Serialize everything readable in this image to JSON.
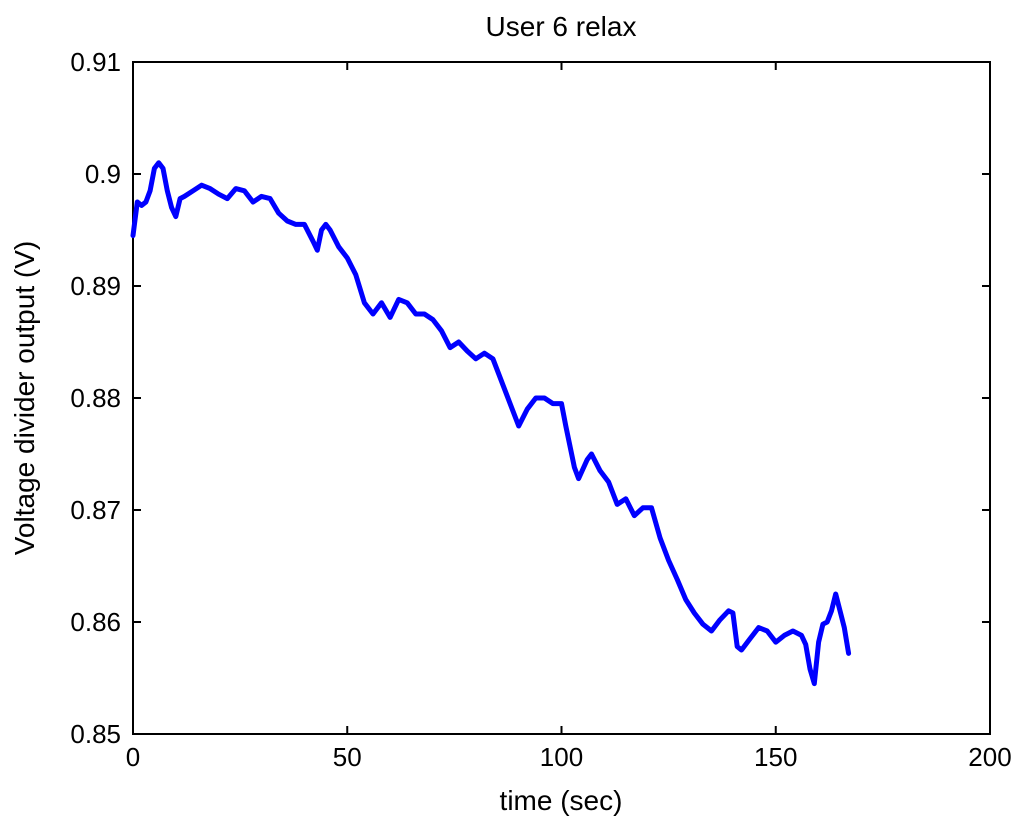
{
  "chart_data": {
    "type": "line",
    "title": "User 6 relax",
    "xlabel": "time (sec)",
    "ylabel": "Voltage divider output (V)",
    "xlim": [
      0,
      200
    ],
    "ylim": [
      0.85,
      0.91
    ],
    "xticks": [
      0,
      50,
      100,
      150,
      200
    ],
    "xtick_labels": [
      "0",
      "50",
      "100",
      "150",
      "200"
    ],
    "yticks": [
      0.85,
      0.86,
      0.87,
      0.88,
      0.89,
      0.9,
      0.91
    ],
    "ytick_labels": [
      "0.85",
      "0.86",
      "0.87",
      "0.88",
      "0.89",
      "0.9",
      "0.91"
    ],
    "grid": false,
    "line_color": "#0000ff",
    "series": [
      {
        "x": [
          0,
          1,
          2,
          3,
          4,
          5,
          6,
          7,
          8,
          9,
          10,
          11,
          12,
          14,
          16,
          18,
          20,
          22,
          24,
          26,
          28,
          30,
          32,
          34,
          36,
          38,
          40,
          42,
          43,
          44,
          45,
          46,
          48,
          50,
          52,
          54,
          56,
          58,
          60,
          62,
          64,
          66,
          68,
          70,
          72,
          74,
          76,
          78,
          80,
          82,
          84,
          86,
          88,
          90,
          92,
          94,
          96,
          98,
          100,
          101,
          103,
          104,
          106,
          107,
          109,
          111,
          113,
          115,
          117,
          119,
          121,
          123,
          125,
          127,
          129,
          131,
          133,
          135,
          137,
          139,
          140,
          141,
          142,
          144,
          146,
          148,
          150,
          152,
          154,
          156,
          157,
          158,
          159,
          160,
          161,
          162,
          163,
          164,
          165,
          166,
          167
        ],
        "y": [
          0.8945,
          0.8975,
          0.8972,
          0.8975,
          0.8985,
          0.9005,
          0.901,
          0.9005,
          0.8985,
          0.897,
          0.8962,
          0.8978,
          0.898,
          0.8985,
          0.899,
          0.8987,
          0.8982,
          0.8978,
          0.8987,
          0.8985,
          0.8975,
          0.898,
          0.8978,
          0.8965,
          0.8958,
          0.8955,
          0.8955,
          0.894,
          0.8932,
          0.895,
          0.8955,
          0.895,
          0.8935,
          0.8925,
          0.891,
          0.8885,
          0.8875,
          0.8885,
          0.8872,
          0.8888,
          0.8885,
          0.8875,
          0.8875,
          0.887,
          0.886,
          0.8845,
          0.885,
          0.8842,
          0.8835,
          0.884,
          0.8835,
          0.8815,
          0.8795,
          0.8775,
          0.879,
          0.88,
          0.88,
          0.8795,
          0.8795,
          0.8775,
          0.8738,
          0.8728,
          0.8745,
          0.875,
          0.8735,
          0.8725,
          0.8705,
          0.871,
          0.8695,
          0.8702,
          0.8702,
          0.8675,
          0.8655,
          0.8638,
          0.862,
          0.8608,
          0.8598,
          0.8592,
          0.8602,
          0.861,
          0.8608,
          0.8578,
          0.8575,
          0.8585,
          0.8595,
          0.8592,
          0.8582,
          0.8588,
          0.8592,
          0.8588,
          0.858,
          0.8558,
          0.8545,
          0.8582,
          0.8598,
          0.86,
          0.861,
          0.8625,
          0.861,
          0.8595,
          0.8572
        ]
      }
    ]
  }
}
